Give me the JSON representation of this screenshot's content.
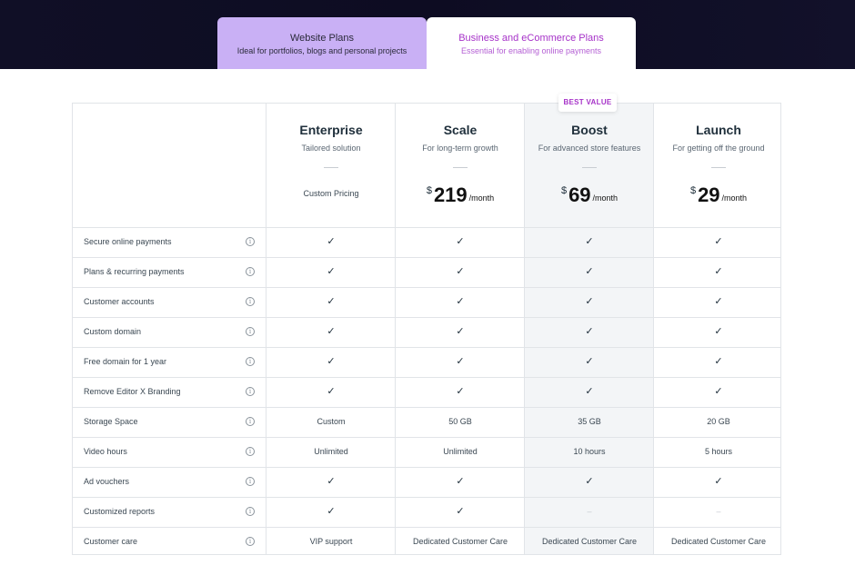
{
  "tabs": [
    {
      "title": "Website Plans",
      "subtitle": "Ideal for portfolios, blogs and personal projects",
      "active": false
    },
    {
      "title": "Business and eCommerce Plans",
      "subtitle": "Essential for enabling online payments",
      "active": true
    }
  ],
  "badge": "BEST VALUE",
  "plans": [
    {
      "name": "Enterprise",
      "desc": "Tailored solution",
      "custom_pricing": "Custom Pricing",
      "currency": "",
      "price": "",
      "per": ""
    },
    {
      "name": "Scale",
      "desc": "For long-term growth",
      "custom_pricing": "",
      "currency": "$",
      "price": "219",
      "per": "/month"
    },
    {
      "name": "Boost",
      "desc": "For advanced store features",
      "custom_pricing": "",
      "currency": "$",
      "price": "69",
      "per": "/month"
    },
    {
      "name": "Launch",
      "desc": "For getting off the ground",
      "custom_pricing": "",
      "currency": "$",
      "price": "29",
      "per": "/month"
    }
  ],
  "features": [
    {
      "label": "Secure online payments",
      "values": [
        "✓",
        "✓",
        "✓",
        "✓"
      ]
    },
    {
      "label": "Plans & recurring payments",
      "values": [
        "✓",
        "✓",
        "✓",
        "✓"
      ]
    },
    {
      "label": "Customer accounts",
      "values": [
        "✓",
        "✓",
        "✓",
        "✓"
      ]
    },
    {
      "label": "Custom domain",
      "values": [
        "✓",
        "✓",
        "✓",
        "✓"
      ]
    },
    {
      "label": "Free domain for 1 year",
      "values": [
        "✓",
        "✓",
        "✓",
        "✓"
      ]
    },
    {
      "label": "Remove Editor X Branding",
      "values": [
        "✓",
        "✓",
        "✓",
        "✓"
      ]
    },
    {
      "label": "Storage Space",
      "values": [
        "Custom",
        "50 GB",
        "35 GB",
        "20 GB"
      ]
    },
    {
      "label": "Video hours",
      "values": [
        "Unlimited",
        "Unlimited",
        "10 hours",
        "5 hours"
      ]
    },
    {
      "label": "Ad vouchers",
      "values": [
        "✓",
        "✓",
        "✓",
        "✓"
      ]
    },
    {
      "label": "Customized reports",
      "values": [
        "✓",
        "✓",
        "–",
        "–"
      ]
    },
    {
      "label": "Customer care",
      "values": [
        "VIP support",
        "Dedicated Customer Care",
        "Dedicated Customer Care",
        "Dedicated Customer Care"
      ]
    }
  ],
  "icons": {
    "info": "info-icon",
    "check": "check-icon"
  },
  "colors": {
    "accent": "#a632c8",
    "inactive_tab": "#c9b0f5",
    "top_band": "#100f26",
    "highlight_column": "#f3f5f7"
  }
}
